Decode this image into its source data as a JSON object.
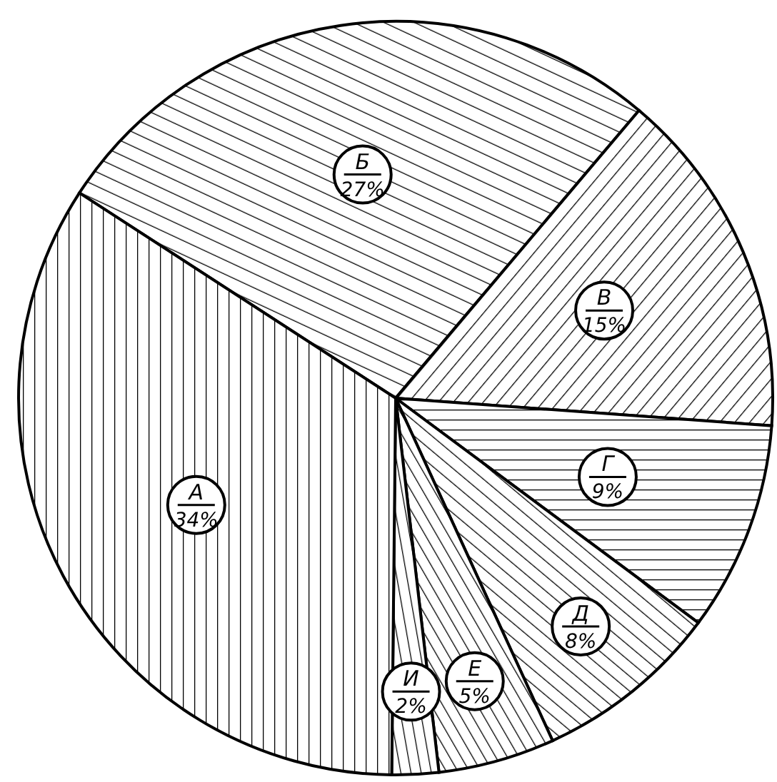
{
  "chart_data": {
    "type": "pie",
    "categories": [
      "Б",
      "В",
      "Г",
      "Д",
      "Е",
      "И",
      "А"
    ],
    "values": [
      27,
      15,
      9,
      8,
      5,
      2,
      34
    ],
    "value_labels": [
      "27%",
      "15%",
      "9%",
      "8%",
      "5%",
      "2%",
      "34%"
    ],
    "colors": [
      "#000000",
      "#000000",
      "#000000",
      "#000000",
      "#000000",
      "#000000",
      "#000000"
    ],
    "legend": false
  }
}
